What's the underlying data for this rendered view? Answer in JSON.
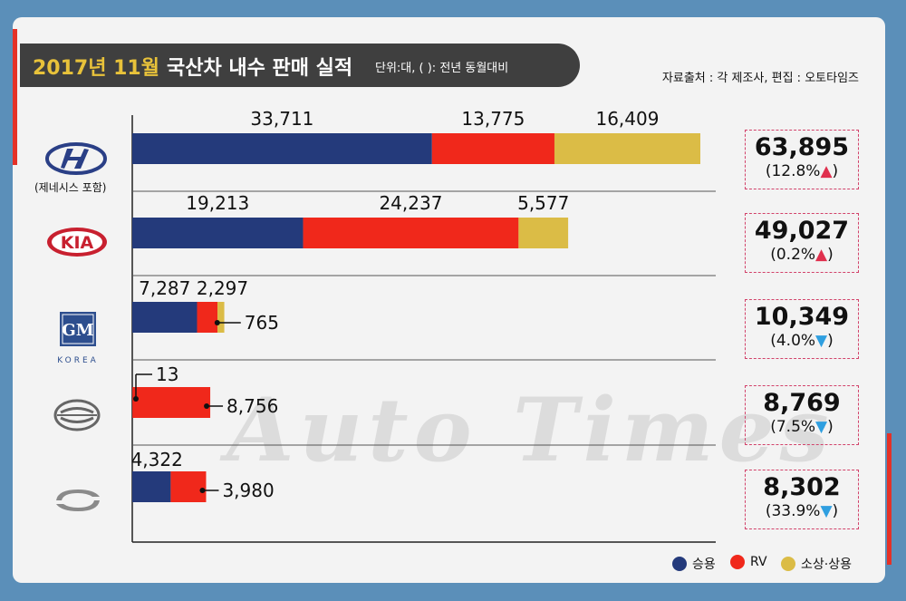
{
  "title": {
    "main": "2017년 11월",
    "sub": "국산차 내수 판매 실적",
    "unit": "단위:대, ( ): 전년 동월대비"
  },
  "source": "자료출처 : 각 제조사, 편집 : 오토타임즈",
  "watermark": "Auto Times",
  "colors": {
    "passenger": "#243a7b",
    "rv": "#f0281b",
    "commercial": "#dbbc46",
    "up": "#e0304e",
    "down": "#2f9fe0"
  },
  "logos": {
    "hyundai": {
      "icon": "hyundai-logo",
      "caption": "(제네시스 포함)"
    },
    "kia": {
      "icon": "kia-logo",
      "text": "KIA"
    },
    "gm": {
      "icon": "gm-korea-logo",
      "text": "GM",
      "sub": "KOREA"
    },
    "ssangyong": {
      "icon": "ssangyong-logo"
    },
    "renault": {
      "icon": "renault-samsung-logo"
    }
  },
  "chart_data": {
    "type": "bar",
    "orientation": "horizontal",
    "stacked": true,
    "categories": [
      "현대",
      "기아",
      "한국GM",
      "쌍용",
      "르노삼성"
    ],
    "series": [
      {
        "name": "승용",
        "values": [
          33711,
          19213,
          7287,
          13,
          4322
        ]
      },
      {
        "name": "RV",
        "values": [
          13775,
          24237,
          2297,
          8756,
          3980
        ]
      },
      {
        "name": "소상·상용",
        "values": [
          16409,
          5577,
          765,
          0,
          0
        ]
      }
    ],
    "totals": [
      {
        "value": "63,895",
        "change": "(12.8%",
        "arrow": "▲",
        "dir": "up"
      },
      {
        "value": "49,027",
        "change": "(0.2%",
        "arrow": "▲",
        "dir": "up"
      },
      {
        "value": "10,349",
        "change": "(4.0%",
        "arrow": "▼",
        "dir": "down"
      },
      {
        "value": "8,769",
        "change": "(7.5%",
        "arrow": "▼",
        "dir": "down"
      },
      {
        "value": "8,302",
        "change": "(33.9%",
        "arrow": "▼",
        "dir": "down"
      }
    ],
    "labels": [
      [
        "33,711",
        "13,775",
        "16,409"
      ],
      [
        "19,213",
        "24,237",
        "5,577"
      ],
      [
        "7,287",
        "2,297",
        "765"
      ],
      [
        "13",
        "8,756"
      ],
      [
        "4,322",
        "3,980"
      ]
    ],
    "legend": [
      "승용",
      "RV",
      "소상·상용"
    ],
    "legend_position": "bottom-right",
    "xlim": [
      0,
      70000
    ],
    "grid": false
  }
}
